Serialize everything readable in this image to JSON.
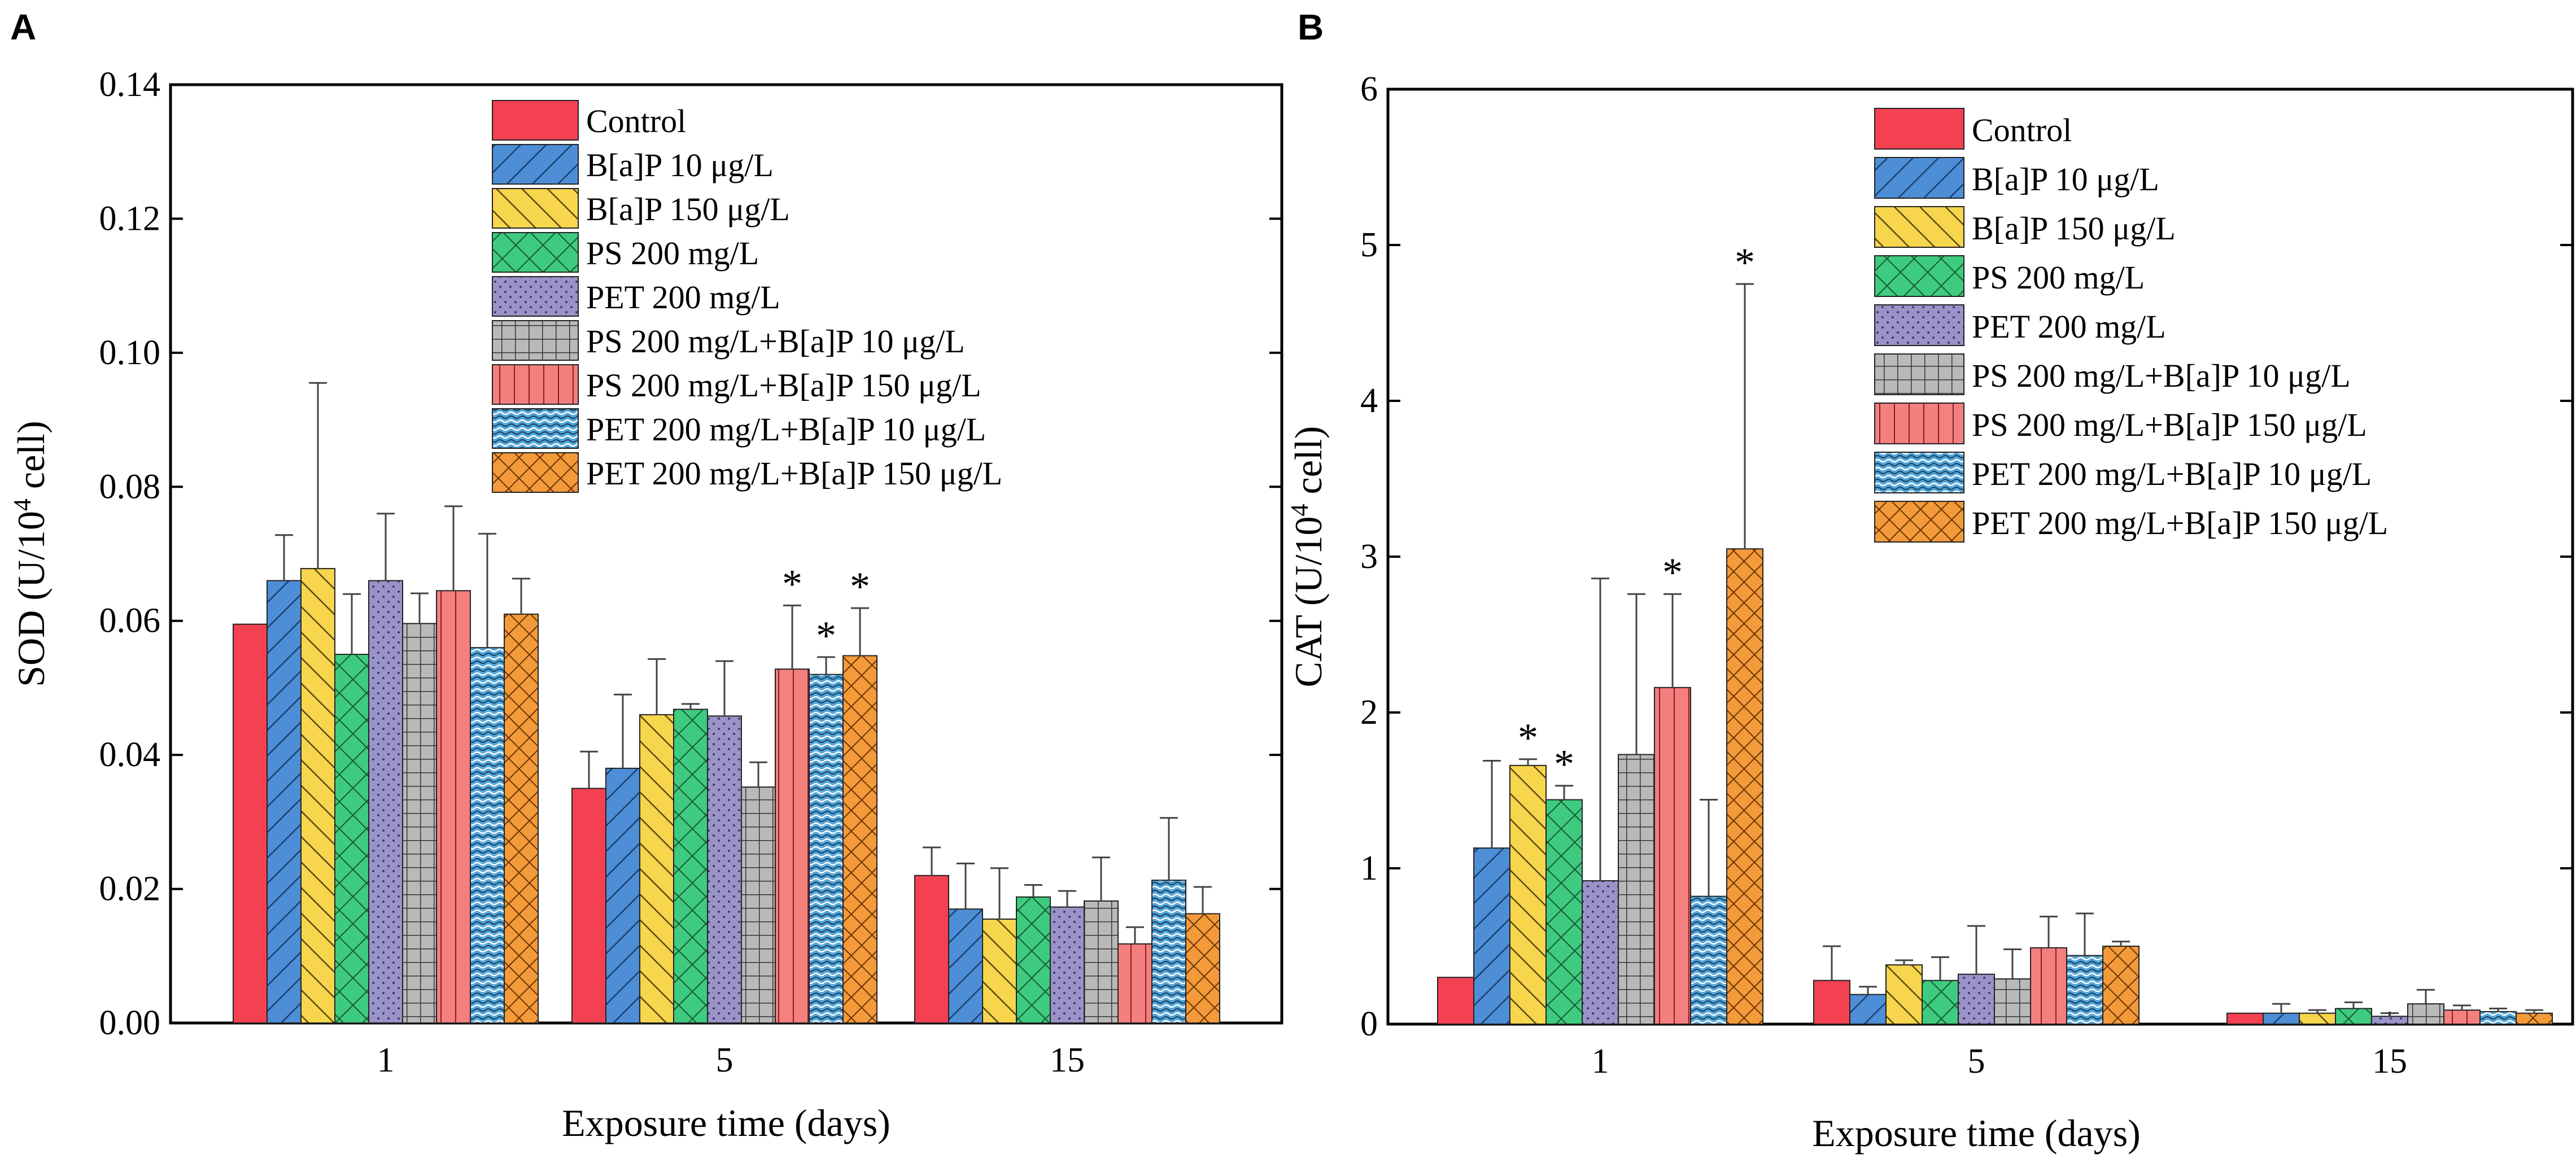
{
  "panels": {
    "a": "A",
    "b": "B"
  },
  "colors": {
    "series": [
      "#f44152",
      "#4d8ed6",
      "#f7d54c",
      "#3ecb7f",
      "#9a93c7",
      "#b9b9b9",
      "#f47f7f",
      "#55a6d8",
      "#f39a3a"
    ],
    "axis": "#000000",
    "error": "#444444"
  },
  "chart_data": [
    {
      "id": "A",
      "type": "bar",
      "title": "",
      "xlabel": "Exposure time (days)",
      "ylabel_main": "SOD (U/10",
      "ylabel_sup": "4",
      "ylabel_tail": " cell)",
      "categories": [
        "1",
        "5",
        "15"
      ],
      "ylim": [
        0,
        0.14
      ],
      "yticks": [
        0,
        0.02,
        0.04,
        0.06,
        0.08,
        0.1,
        0.12,
        0.14
      ],
      "ytick_labels": [
        "0.00",
        "0.02",
        "0.04",
        "0.06",
        "0.08",
        "0.10",
        "0.12",
        "0.14"
      ],
      "grid": false,
      "legend_position": "top-center",
      "significance_marker": "*",
      "series": [
        {
          "name": "Control",
          "values": [
            0.0595,
            0.035,
            0.022
          ],
          "errors": [
            0,
            0.0055,
            0.0042
          ],
          "sig": [
            false,
            false,
            false
          ]
        },
        {
          "name": "B[a]P 10 μg/L",
          "values": [
            0.066,
            0.038,
            0.017
          ],
          "errors": [
            0.0068,
            0.011,
            0.0068
          ],
          "sig": [
            false,
            false,
            false
          ]
        },
        {
          "name": "B[a]P 150 μg/L",
          "values": [
            0.0678,
            0.046,
            0.0155
          ],
          "errors": [
            0.0277,
            0.0083,
            0.0076
          ],
          "sig": [
            false,
            false,
            false
          ]
        },
        {
          "name": "PS 200 mg/L",
          "values": [
            0.055,
            0.0468,
            0.0188
          ],
          "errors": [
            0.009,
            0.0008,
            0.0018
          ],
          "sig": [
            false,
            false,
            false
          ]
        },
        {
          "name": "PET 200 mg/L",
          "values": [
            0.066,
            0.0458,
            0.0173
          ],
          "errors": [
            0.01,
            0.0082,
            0.0024
          ],
          "sig": [
            false,
            false,
            false
          ]
        },
        {
          "name": "PS 200 mg/L+B[a]P 10 μg/L",
          "values": [
            0.0596,
            0.0352,
            0.0182
          ],
          "errors": [
            0.0045,
            0.0037,
            0.0065
          ],
          "sig": [
            false,
            false,
            false
          ]
        },
        {
          "name": "PS 200 mg/L+B[a]P 150 μg/L",
          "values": [
            0.0645,
            0.0528,
            0.0118
          ],
          "errors": [
            0.0126,
            0.0095,
            0.0025
          ],
          "sig": [
            false,
            true,
            false
          ]
        },
        {
          "name": "PET 200 mg/L+B[a]P 10 μg/L",
          "values": [
            0.056,
            0.052,
            0.0213
          ],
          "errors": [
            0.017,
            0.0026,
            0.0093
          ],
          "sig": [
            false,
            true,
            false
          ]
        },
        {
          "name": "PET 200 mg/L+B[a]P 150 μg/L",
          "values": [
            0.061,
            0.0548,
            0.0163
          ],
          "errors": [
            0.0053,
            0.0071,
            0.004
          ],
          "sig": [
            false,
            true,
            false
          ]
        }
      ]
    },
    {
      "id": "B",
      "type": "bar",
      "title": "",
      "xlabel": "Exposure time (days)",
      "ylabel_main": "CAT (U/10",
      "ylabel_sup": "4",
      "ylabel_tail": " cell)",
      "categories": [
        "1",
        "5",
        "15"
      ],
      "ylim": [
        0,
        6
      ],
      "yticks": [
        0,
        1,
        2,
        3,
        4,
        5,
        6
      ],
      "ytick_labels": [
        "0",
        "1",
        "2",
        "3",
        "4",
        "5",
        "6"
      ],
      "grid": false,
      "legend_position": "top-right",
      "significance_marker": "*",
      "series": [
        {
          "name": "Control",
          "values": [
            0.3,
            0.28,
            0.07
          ],
          "errors": [
            0,
            0.22,
            0
          ],
          "sig": [
            false,
            false,
            false
          ]
        },
        {
          "name": "B[a]P 10 μg/L",
          "values": [
            1.13,
            0.19,
            0.07
          ],
          "errors": [
            0.56,
            0.05,
            0.06
          ],
          "sig": [
            false,
            false,
            false
          ]
        },
        {
          "name": "B[a]P 150 μg/L",
          "values": [
            1.66,
            0.38,
            0.07
          ],
          "errors": [
            0.04,
            0.03,
            0.02
          ],
          "sig": [
            true,
            false,
            false
          ]
        },
        {
          "name": "PS 200 mg/L",
          "values": [
            1.44,
            0.28,
            0.1
          ],
          "errors": [
            0.09,
            0.15,
            0.04
          ],
          "sig": [
            true,
            false,
            false
          ]
        },
        {
          "name": "PET 200 mg/L",
          "values": [
            0.92,
            0.32,
            0.05
          ],
          "errors": [
            1.94,
            0.31,
            0.02
          ],
          "sig": [
            false,
            false,
            false
          ]
        },
        {
          "name": "PS 200 mg/L+B[a]P 10 μg/L",
          "values": [
            1.73,
            0.29,
            0.13
          ],
          "errors": [
            1.03,
            0.19,
            0.09
          ],
          "sig": [
            false,
            false,
            false
          ]
        },
        {
          "name": "PS 200 mg/L+B[a]P 150 μg/L",
          "values": [
            2.16,
            0.49,
            0.09
          ],
          "errors": [
            0.6,
            0.2,
            0.03
          ],
          "sig": [
            true,
            false,
            false
          ]
        },
        {
          "name": "PET 200 mg/L+B[a]P 10 μg/L",
          "values": [
            0.82,
            0.44,
            0.08
          ],
          "errors": [
            0.62,
            0.27,
            0.02
          ],
          "sig": [
            false,
            false,
            false
          ]
        },
        {
          "name": "PET 200 mg/L+B[a]P 150 μg/L",
          "values": [
            3.05,
            0.5,
            0.07
          ],
          "errors": [
            1.7,
            0.03,
            0.02
          ],
          "sig": [
            true,
            false,
            false
          ]
        }
      ]
    }
  ]
}
